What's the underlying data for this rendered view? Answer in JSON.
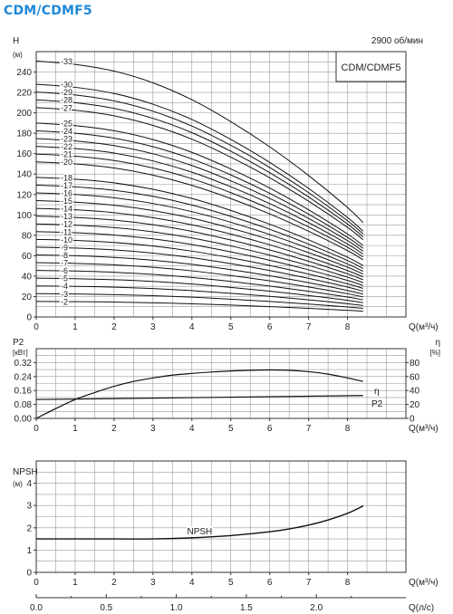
{
  "page_title": "CDM/CDMF5",
  "chart_data": [
    {
      "type": "line",
      "panel": "head",
      "speed_label": "2900 об/мин",
      "model_label": "CDM/CDMF5",
      "ylabel": "H",
      "yunit": "(м)",
      "xlabel": "Q(м³/ч)",
      "xlim": [
        0,
        9.5
      ],
      "ylim": [
        0,
        260
      ],
      "x_ticks": [
        0,
        1,
        2,
        3,
        4,
        5,
        6,
        7,
        8
      ],
      "y_ticks": [
        0,
        20,
        40,
        60,
        80,
        100,
        120,
        140,
        160,
        180,
        200,
        220,
        240
      ],
      "grid": true,
      "x": [
        0,
        1,
        2,
        3,
        4,
        5,
        6,
        7,
        8,
        8.4
      ],
      "series": [
        {
          "name": "-2",
          "values": [
            15.2,
            15.0,
            14.6,
            13.9,
            12.9,
            11.6,
            10.1,
            8.4,
            6.5,
            5.6
          ]
        },
        {
          "name": "-3",
          "values": [
            22.8,
            22.5,
            21.9,
            20.9,
            19.4,
            17.4,
            15.2,
            12.6,
            9.8,
            8.4
          ]
        },
        {
          "name": "-4",
          "values": [
            30.4,
            30.0,
            29.2,
            27.8,
            25.8,
            23.2,
            20.2,
            16.8,
            13.0,
            11.2
          ]
        },
        {
          "name": "-5",
          "values": [
            38.0,
            37.5,
            36.5,
            34.8,
            32.3,
            29.0,
            25.3,
            21.0,
            16.3,
            14.0
          ]
        },
        {
          "name": "-6",
          "values": [
            45.6,
            45.0,
            43.8,
            41.7,
            38.7,
            34.8,
            30.3,
            25.2,
            19.5,
            16.8
          ]
        },
        {
          "name": "-7",
          "values": [
            53.2,
            52.5,
            51.1,
            48.7,
            45.2,
            40.6,
            35.4,
            29.4,
            22.8,
            19.6
          ]
        },
        {
          "name": "-8",
          "values": [
            60.8,
            60.0,
            58.4,
            55.6,
            51.6,
            46.4,
            40.4,
            33.6,
            26.0,
            22.4
          ]
        },
        {
          "name": "-9",
          "values": [
            68.4,
            67.5,
            65.7,
            62.6,
            58.1,
            52.2,
            45.5,
            37.8,
            29.3,
            25.2
          ]
        },
        {
          "name": "-10",
          "values": [
            76.0,
            75.0,
            73.0,
            69.5,
            64.5,
            58.0,
            50.5,
            42.0,
            32.5,
            28.0
          ]
        },
        {
          "name": "-11",
          "values": [
            83.6,
            82.5,
            80.3,
            76.5,
            71.0,
            63.8,
            55.6,
            46.2,
            35.8,
            30.8
          ]
        },
        {
          "name": "-12",
          "values": [
            91.2,
            90.0,
            87.6,
            83.4,
            77.4,
            69.6,
            60.6,
            50.4,
            39.0,
            33.6
          ]
        },
        {
          "name": "-13",
          "values": [
            98.8,
            97.5,
            94.9,
            90.4,
            83.9,
            75.4,
            65.7,
            54.6,
            42.3,
            36.4
          ]
        },
        {
          "name": "-14",
          "values": [
            106.4,
            105.0,
            102.2,
            97.3,
            90.3,
            81.2,
            70.7,
            58.8,
            45.5,
            39.2
          ]
        },
        {
          "name": "-15",
          "values": [
            114.0,
            112.5,
            109.5,
            104.3,
            96.8,
            87.0,
            75.8,
            63.0,
            48.8,
            42.0
          ]
        },
        {
          "name": "-16",
          "values": [
            121.6,
            120.0,
            116.8,
            111.2,
            103.2,
            92.8,
            80.8,
            67.2,
            52.0,
            44.8
          ]
        },
        {
          "name": "-17",
          "values": [
            129.2,
            127.5,
            124.1,
            118.2,
            109.7,
            98.6,
            85.9,
            71.4,
            55.3,
            47.6
          ]
        },
        {
          "name": "-18",
          "values": [
            136.8,
            135.0,
            131.4,
            125.1,
            116.1,
            104.4,
            90.9,
            75.6,
            58.5,
            50.4
          ]
        },
        {
          "name": "-20",
          "values": [
            152.0,
            150.0,
            146.0,
            139.0,
            129.0,
            116.0,
            101.0,
            84.0,
            65.0,
            56.0
          ]
        },
        {
          "name": "-21",
          "values": [
            159.6,
            157.5,
            153.3,
            146.0,
            135.5,
            121.8,
            106.1,
            88.2,
            68.3,
            58.8
          ]
        },
        {
          "name": "-22",
          "values": [
            167.2,
            165.0,
            160.6,
            152.9,
            141.9,
            127.6,
            111.1,
            92.4,
            71.5,
            61.6
          ]
        },
        {
          "name": "-23",
          "values": [
            174.8,
            172.5,
            167.9,
            159.9,
            148.4,
            133.4,
            116.2,
            96.6,
            74.8,
            64.4
          ]
        },
        {
          "name": "-24",
          "values": [
            182.4,
            180.0,
            175.2,
            166.8,
            154.8,
            139.2,
            121.2,
            100.8,
            78.0,
            67.2
          ]
        },
        {
          "name": "-25",
          "values": [
            190.0,
            187.5,
            182.5,
            173.8,
            161.3,
            145.0,
            126.3,
            105.0,
            81.3,
            70.0
          ]
        },
        {
          "name": "-27",
          "values": [
            205.2,
            202.5,
            197.1,
            187.7,
            174.2,
            156.6,
            136.4,
            113.4,
            87.8,
            75.6
          ]
        },
        {
          "name": "-28",
          "values": [
            212.8,
            210.0,
            204.4,
            194.6,
            180.6,
            162.4,
            141.4,
            117.6,
            91.0,
            78.4
          ]
        },
        {
          "name": "-29",
          "values": [
            220.4,
            217.5,
            211.7,
            201.6,
            187.1,
            168.2,
            146.5,
            121.8,
            94.3,
            81.2
          ]
        },
        {
          "name": "-30",
          "values": [
            228.0,
            225.0,
            219.0,
            208.5,
            193.5,
            174.0,
            151.5,
            126.0,
            97.5,
            84.0
          ]
        },
        {
          "name": "-33",
          "values": [
            250.8,
            247.5,
            240.9,
            229.4,
            212.9,
            191.4,
            166.7,
            138.6,
            107.3,
            92.4
          ]
        }
      ]
    },
    {
      "type": "line",
      "panel": "power",
      "ylabel": "P2",
      "yunit": "[кВт]",
      "y2label": "η",
      "y2unit": "[%]",
      "xlabel": "Q(м³/ч)",
      "xlim": [
        0,
        9.5
      ],
      "ylim": [
        0,
        0.4
      ],
      "y2lim": [
        0,
        100
      ],
      "x_ticks": [
        0,
        1,
        2,
        3,
        4,
        5,
        6,
        7,
        8
      ],
      "y_ticks": [
        "0.00",
        "0.08",
        "0.16",
        "0.24",
        "0.32"
      ],
      "y2_ticks": [
        0,
        20,
        40,
        60,
        80
      ],
      "grid": true,
      "series": [
        {
          "name": "η",
          "axis": "right",
          "x": [
            0,
            0.5,
            1,
            1.5,
            2,
            2.5,
            3,
            3.5,
            4,
            4.5,
            5,
            5.5,
            6,
            6.5,
            7,
            7.5,
            8,
            8.4
          ],
          "values": [
            0,
            14,
            27,
            37,
            46,
            53,
            58,
            62,
            64.5,
            66.5,
            68,
            69,
            69.5,
            69,
            67,
            63.5,
            58,
            53
          ]
        },
        {
          "name": "P2",
          "axis": "left",
          "x": [
            0,
            8.4
          ],
          "values": [
            0.108,
            0.131
          ]
        }
      ]
    },
    {
      "type": "line",
      "panel": "npsh",
      "ylabel": "NPSH",
      "yunit": "(м)",
      "xlabel": "Q(м³/ч)",
      "xlim": [
        0,
        9.5
      ],
      "ylim": [
        0,
        5
      ],
      "x_ticks": [
        0,
        1,
        2,
        3,
        4,
        5,
        6,
        7,
        8
      ],
      "y_ticks": [
        0,
        1,
        2,
        3,
        4
      ],
      "grid": true,
      "series": [
        {
          "name": "NPSH",
          "x": [
            0,
            1,
            2,
            3,
            4,
            5,
            5.5,
            6,
            6.5,
            7,
            7.5,
            8,
            8.4
          ],
          "values": [
            1.5,
            1.5,
            1.5,
            1.5,
            1.55,
            1.65,
            1.73,
            1.82,
            1.95,
            2.12,
            2.35,
            2.65,
            2.98
          ]
        }
      ]
    },
    {
      "type": "axis",
      "panel": "flow-l-per-s",
      "xlabel": "Q(л/с)",
      "xlim": [
        0,
        2.639
      ],
      "x_ticks": [
        "0.0",
        "0.5",
        "1.0",
        "1.5",
        "2.0"
      ]
    }
  ]
}
